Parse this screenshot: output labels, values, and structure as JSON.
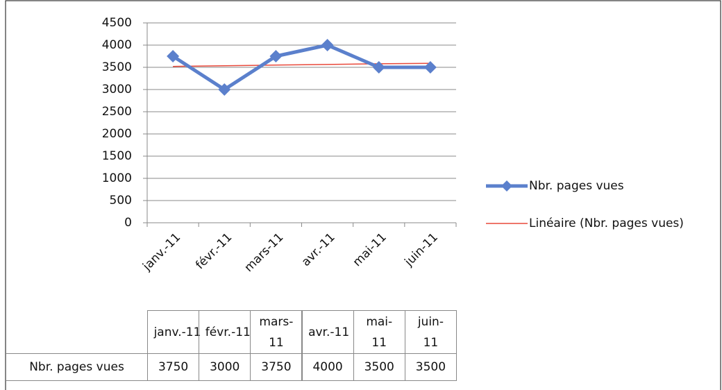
{
  "chart_data": {
    "type": "line",
    "categories": [
      "janv.-11",
      "févr.-11",
      "mars-11",
      "avr.-11",
      "mai-11",
      "juin-11"
    ],
    "series": [
      {
        "name": "Nbr. pages vues",
        "color": "#5b80cc",
        "values": [
          3750,
          3000,
          3750,
          4000,
          3500,
          3500
        ]
      },
      {
        "name": "Linéaire (Nbr. pages vues)",
        "color": "#e8483a",
        "values": [
          3520,
          3535,
          3550,
          3565,
          3580,
          3590
        ]
      }
    ],
    "ylim": [
      0,
      4500
    ],
    "yticks": [
      0,
      500,
      1000,
      1500,
      2000,
      2500,
      3000,
      3500,
      4000,
      4500
    ],
    "grid": true,
    "legend": "right",
    "data_table": true
  }
}
